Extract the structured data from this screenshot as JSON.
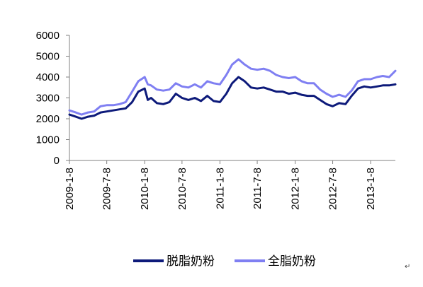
{
  "chart_data": {
    "type": "line",
    "title": "",
    "xlabel": "",
    "ylabel": "",
    "ylim": [
      0,
      6000
    ],
    "yticks": [
      0,
      1000,
      2000,
      3000,
      4000,
      5000,
      6000
    ],
    "xticks": [
      "2009-1-8",
      "2009-7-8",
      "2010-1-8",
      "2010-7-8",
      "2011-1-8",
      "2011-7-8",
      "2012-1-8",
      "2012-7-8",
      "2013-1-8"
    ],
    "x_range": [
      "2009-01-08",
      "2013-05-08"
    ],
    "grid": false,
    "legend_position": "bottom",
    "series": [
      {
        "name": "脱脂奶粉",
        "color": "#0d1a7a",
        "points": [
          [
            "2009-01-08",
            2200
          ],
          [
            "2009-02-08",
            2100
          ],
          [
            "2009-03-08",
            2000
          ],
          [
            "2009-04-08",
            2100
          ],
          [
            "2009-05-08",
            2150
          ],
          [
            "2009-06-08",
            2300
          ],
          [
            "2009-07-08",
            2350
          ],
          [
            "2009-08-08",
            2400
          ],
          [
            "2009-09-08",
            2450
          ],
          [
            "2009-10-08",
            2500
          ],
          [
            "2009-11-08",
            2800
          ],
          [
            "2009-12-08",
            3300
          ],
          [
            "2010-01-08",
            3450
          ],
          [
            "2010-01-23",
            2900
          ],
          [
            "2010-02-08",
            3000
          ],
          [
            "2010-03-08",
            2750
          ],
          [
            "2010-04-08",
            2700
          ],
          [
            "2010-05-08",
            2800
          ],
          [
            "2010-06-08",
            3200
          ],
          [
            "2010-07-08",
            3000
          ],
          [
            "2010-08-08",
            2900
          ],
          [
            "2010-09-08",
            3000
          ],
          [
            "2010-10-08",
            2850
          ],
          [
            "2010-11-08",
            3100
          ],
          [
            "2010-12-08",
            2850
          ],
          [
            "2011-01-08",
            2800
          ],
          [
            "2011-02-08",
            3200
          ],
          [
            "2011-03-08",
            3700
          ],
          [
            "2011-04-08",
            4000
          ],
          [
            "2011-05-08",
            3800
          ],
          [
            "2011-06-08",
            3500
          ],
          [
            "2011-07-08",
            3450
          ],
          [
            "2011-08-08",
            3500
          ],
          [
            "2011-09-08",
            3400
          ],
          [
            "2011-10-08",
            3300
          ],
          [
            "2011-11-08",
            3300
          ],
          [
            "2011-12-08",
            3200
          ],
          [
            "2012-01-08",
            3250
          ],
          [
            "2012-02-08",
            3150
          ],
          [
            "2012-03-08",
            3100
          ],
          [
            "2012-04-08",
            3100
          ],
          [
            "2012-05-08",
            2900
          ],
          [
            "2012-06-08",
            2700
          ],
          [
            "2012-07-08",
            2600
          ],
          [
            "2012-08-08",
            2750
          ],
          [
            "2012-09-08",
            2700
          ],
          [
            "2012-10-08",
            3100
          ],
          [
            "2012-11-08",
            3450
          ],
          [
            "2012-12-08",
            3550
          ],
          [
            "2013-01-08",
            3500
          ],
          [
            "2013-02-08",
            3550
          ],
          [
            "2013-03-08",
            3600
          ],
          [
            "2013-04-08",
            3600
          ],
          [
            "2013-05-08",
            3650
          ]
        ]
      },
      {
        "name": "全脂奶粉",
        "color": "#7f7ff2",
        "points": [
          [
            "2009-01-08",
            2400
          ],
          [
            "2009-02-08",
            2300
          ],
          [
            "2009-03-08",
            2200
          ],
          [
            "2009-04-08",
            2300
          ],
          [
            "2009-05-08",
            2350
          ],
          [
            "2009-06-08",
            2600
          ],
          [
            "2009-07-08",
            2650
          ],
          [
            "2009-08-08",
            2650
          ],
          [
            "2009-09-08",
            2700
          ],
          [
            "2009-10-08",
            2800
          ],
          [
            "2009-11-08",
            3300
          ],
          [
            "2009-12-08",
            3800
          ],
          [
            "2010-01-08",
            4000
          ],
          [
            "2010-01-23",
            3650
          ],
          [
            "2010-02-08",
            3600
          ],
          [
            "2010-03-08",
            3400
          ],
          [
            "2010-04-08",
            3350
          ],
          [
            "2010-05-08",
            3400
          ],
          [
            "2010-06-08",
            3700
          ],
          [
            "2010-07-08",
            3550
          ],
          [
            "2010-08-08",
            3500
          ],
          [
            "2010-09-08",
            3650
          ],
          [
            "2010-10-08",
            3500
          ],
          [
            "2010-11-08",
            3800
          ],
          [
            "2010-12-08",
            3700
          ],
          [
            "2011-01-08",
            3650
          ],
          [
            "2011-02-08",
            4100
          ],
          [
            "2011-03-08",
            4600
          ],
          [
            "2011-04-08",
            4850
          ],
          [
            "2011-05-08",
            4600
          ],
          [
            "2011-06-08",
            4400
          ],
          [
            "2011-07-08",
            4350
          ],
          [
            "2011-08-08",
            4400
          ],
          [
            "2011-09-08",
            4300
          ],
          [
            "2011-10-08",
            4100
          ],
          [
            "2011-11-08",
            4000
          ],
          [
            "2011-12-08",
            3950
          ],
          [
            "2012-01-08",
            4000
          ],
          [
            "2012-02-08",
            3800
          ],
          [
            "2012-03-08",
            3700
          ],
          [
            "2012-04-08",
            3700
          ],
          [
            "2012-05-08",
            3400
          ],
          [
            "2012-06-08",
            3200
          ],
          [
            "2012-07-08",
            3050
          ],
          [
            "2012-08-08",
            3150
          ],
          [
            "2012-09-08",
            3050
          ],
          [
            "2012-10-08",
            3350
          ],
          [
            "2012-11-08",
            3800
          ],
          [
            "2012-12-08",
            3900
          ],
          [
            "2013-01-08",
            3900
          ],
          [
            "2013-02-08",
            4000
          ],
          [
            "2013-03-08",
            4050
          ],
          [
            "2013-04-08",
            4000
          ],
          [
            "2013-05-08",
            4300
          ]
        ]
      }
    ]
  },
  "page": {
    "paragraph_mark": "↵"
  }
}
